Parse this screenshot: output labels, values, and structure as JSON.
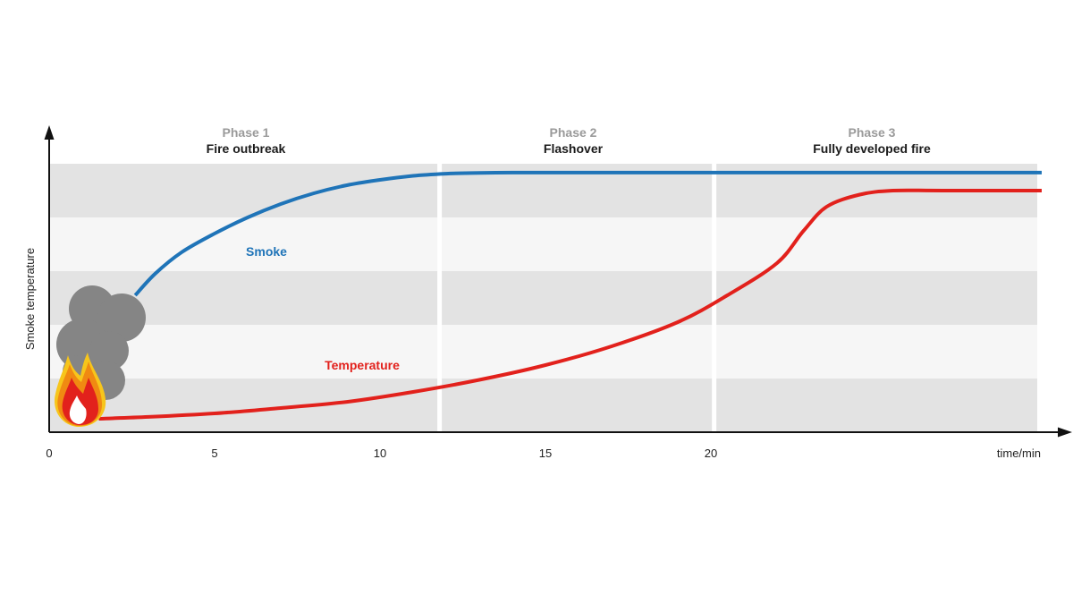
{
  "chart_data": {
    "type": "line",
    "title": "",
    "ylabel": "Smoke temperature",
    "xlabel": "time/min",
    "xlim": [
      0,
      30.8
    ],
    "ylim": [
      0,
      100
    ],
    "x_ticks": [
      0,
      5,
      10,
      15,
      20
    ],
    "x_tick_labels": [
      "0",
      "5",
      "10",
      "15",
      "20"
    ],
    "grid": "horizontal bands",
    "colors": {
      "smoke": "#1f74b8",
      "temperature": "#e2211c",
      "band_dark": "#e3e3e3",
      "band_light": "#f6f6f6",
      "divider": "#ffffff",
      "axis": "#111111"
    },
    "phases": [
      {
        "number": "Phase 1",
        "name": "Fire outbreak",
        "x_start": 0,
        "x_end": 11.8
      },
      {
        "number": "Phase 2",
        "name": "Flashover",
        "x_start": 11.8,
        "x_end": 20.1
      },
      {
        "number": "Phase 3",
        "name": "Fully developed fire",
        "x_start": 20.1,
        "x_end": 30.8
      }
    ],
    "series": [
      {
        "name": "Smoke",
        "color": "#1f74b8",
        "x": [
          2.6,
          3.2,
          4.0,
          5.0,
          6.0,
          7.0,
          8.0,
          9.0,
          10.0,
          11.0,
          12.0,
          13.0,
          14.0,
          16.0,
          20.0,
          25.0,
          30.0
        ],
        "y": [
          51,
          59,
          67,
          74,
          80,
          85,
          89,
          92,
          94,
          95.5,
          96.3,
          96.6,
          96.7,
          96.7,
          96.7,
          96.7,
          96.7
        ]
      },
      {
        "name": "Temperature",
        "color": "#e2211c",
        "x": [
          1.5,
          3.0,
          5.0,
          7.0,
          9.0,
          11.0,
          13.0,
          15.0,
          17.0,
          19.0,
          20.5,
          22.0,
          22.8,
          23.5,
          24.5,
          25.5,
          27.0,
          30.0
        ],
        "y": [
          5,
          5.7,
          7,
          9,
          11.3,
          15,
          19.5,
          25,
          32,
          41,
          51,
          63,
          75,
          84,
          88.5,
          90,
          90,
          90
        ]
      }
    ]
  }
}
